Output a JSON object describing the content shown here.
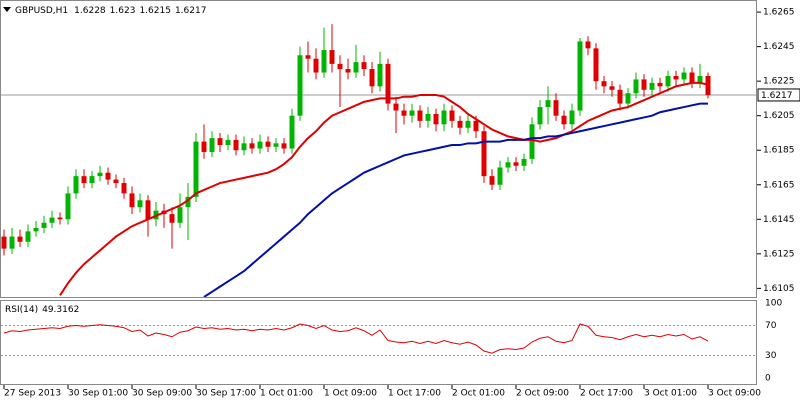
{
  "chart_data": [
    {
      "type": "candlestick",
      "title": "GBPUSD,H1",
      "categories": [
        "27 Sep 2013",
        null,
        null,
        null,
        null,
        null,
        null,
        null,
        "30 Sep 01:00",
        null,
        null,
        null,
        null,
        null,
        null,
        null,
        "30 Sep 09:00",
        null,
        null,
        null,
        null,
        null,
        null,
        null,
        "30 Sep 17:00",
        null,
        null,
        null,
        null,
        null,
        null,
        null,
        "1 Oct 01:00",
        null,
        null,
        null,
        null,
        null,
        null,
        null,
        "1 Oct 09:00",
        null,
        null,
        null,
        null,
        null,
        null,
        null,
        "1 Oct 17:00",
        null,
        null,
        null,
        null,
        null,
        null,
        null,
        "2 Oct 01:00",
        null,
        null,
        null,
        null,
        null,
        null,
        null,
        "2 Oct 09:00",
        null,
        null,
        null,
        null,
        null,
        null,
        null,
        "2 Oct 17:00",
        null,
        null,
        null,
        null,
        null,
        null,
        null,
        "3 Oct 01:00",
        null,
        null,
        null,
        null,
        null,
        null,
        null,
        "3 Oct 09:00"
      ],
      "open": [
        1.6135,
        1.6128,
        1.6135,
        1.6132,
        1.6138,
        1.614,
        1.6143,
        1.6146,
        1.6145,
        1.616,
        1.617,
        1.6166,
        1.617,
        1.6172,
        1.6168,
        1.6166,
        1.616,
        1.6152,
        1.6156,
        1.6145,
        1.615,
        1.6148,
        1.6143,
        1.6152,
        1.6158,
        1.619,
        1.6184,
        1.6192,
        1.6188,
        1.6191,
        1.6185,
        1.6189,
        1.6186,
        1.619,
        1.6187,
        1.6189,
        1.6186,
        1.6205,
        1.624,
        1.6238,
        1.623,
        1.6243,
        1.6235,
        1.6232,
        1.623,
        1.6236,
        1.6232,
        1.6222,
        1.6235,
        1.6212,
        1.6208,
        1.6205,
        1.6208,
        1.6202,
        1.6206,
        1.62,
        1.6208,
        1.6202,
        1.6198,
        1.6202,
        1.6196,
        1.617,
        1.6165,
        1.6175,
        1.6178,
        1.6176,
        1.618,
        1.62,
        1.621,
        1.6214,
        1.6205,
        1.62,
        1.6208,
        1.6248,
        1.6244,
        1.6225,
        1.6222,
        1.622,
        1.6212,
        1.6218,
        1.6226,
        1.622,
        1.6224,
        1.6222,
        1.6228,
        1.6226,
        1.623,
        1.6224,
        1.6228
      ],
      "high": [
        1.6139,
        1.614,
        1.6139,
        1.6142,
        1.6144,
        1.6147,
        1.615,
        1.6149,
        1.6164,
        1.6174,
        1.6174,
        1.6173,
        1.6176,
        1.6175,
        1.6171,
        1.6169,
        1.6164,
        1.616,
        1.6159,
        1.6155,
        1.6154,
        1.6152,
        1.616,
        1.6166,
        1.6195,
        1.62,
        1.6196,
        1.6195,
        1.6194,
        1.6194,
        1.6193,
        1.6192,
        1.6194,
        1.6193,
        1.6192,
        1.6192,
        1.6209,
        1.6245,
        1.6248,
        1.6244,
        1.6256,
        1.6258,
        1.624,
        1.6238,
        1.6246,
        1.624,
        1.6236,
        1.6242,
        1.6238,
        1.6216,
        1.6212,
        1.6212,
        1.6211,
        1.621,
        1.6209,
        1.6212,
        1.6211,
        1.6205,
        1.6206,
        1.6205,
        1.6199,
        1.6174,
        1.6179,
        1.6181,
        1.6181,
        1.6183,
        1.6204,
        1.6214,
        1.6222,
        1.6218,
        1.6208,
        1.6212,
        1.625,
        1.6251,
        1.6247,
        1.6228,
        1.6225,
        1.6223,
        1.6221,
        1.623,
        1.6229,
        1.6227,
        1.6227,
        1.6231,
        1.6231,
        1.6233,
        1.6233,
        1.6235,
        1.623
      ],
      "low": [
        1.6124,
        1.6125,
        1.6129,
        1.6129,
        1.6135,
        1.6137,
        1.614,
        1.6142,
        1.6142,
        1.6157,
        1.6163,
        1.6163,
        1.6167,
        1.6165,
        1.6163,
        1.6157,
        1.6148,
        1.6149,
        1.6135,
        1.6141,
        1.614,
        1.6128,
        1.614,
        1.6133,
        1.6155,
        1.618,
        1.6181,
        1.6184,
        1.6185,
        1.6182,
        1.6182,
        1.6183,
        1.6183,
        1.6184,
        1.6184,
        1.6183,
        1.6183,
        1.6202,
        1.623,
        1.6226,
        1.6227,
        1.623,
        1.621,
        1.6226,
        1.6227,
        1.6228,
        1.6218,
        1.6219,
        1.6208,
        1.6195,
        1.62,
        1.6201,
        1.6198,
        1.6198,
        1.6196,
        1.6196,
        1.6198,
        1.6194,
        1.6195,
        1.6192,
        1.6166,
        1.6162,
        1.6162,
        1.6172,
        1.6173,
        1.6173,
        1.6177,
        1.6197,
        1.62,
        1.6202,
        1.6197,
        1.6197,
        1.6205,
        1.624,
        1.622,
        1.6218,
        1.6216,
        1.6208,
        1.6209,
        1.6215,
        1.6216,
        1.6217,
        1.6218,
        1.6219,
        1.6222,
        1.6223,
        1.6221,
        1.6221,
        1.6215
      ],
      "close": [
        1.6128,
        1.6135,
        1.6132,
        1.6138,
        1.614,
        1.6143,
        1.6146,
        1.6145,
        1.616,
        1.617,
        1.6166,
        1.617,
        1.6172,
        1.6168,
        1.6166,
        1.616,
        1.6152,
        1.6156,
        1.6145,
        1.615,
        1.6148,
        1.6143,
        1.6152,
        1.6158,
        1.619,
        1.6184,
        1.6192,
        1.6188,
        1.6191,
        1.6185,
        1.6189,
        1.6186,
        1.619,
        1.6187,
        1.6189,
        1.6186,
        1.6205,
        1.624,
        1.6238,
        1.623,
        1.6243,
        1.6235,
        1.6232,
        1.623,
        1.6236,
        1.6232,
        1.6222,
        1.6235,
        1.6212,
        1.6208,
        1.6205,
        1.6208,
        1.6202,
        1.6206,
        1.62,
        1.6208,
        1.6202,
        1.6198,
        1.6202,
        1.6196,
        1.617,
        1.6165,
        1.6175,
        1.6178,
        1.6176,
        1.618,
        1.62,
        1.621,
        1.6214,
        1.6205,
        1.62,
        1.6208,
        1.6248,
        1.6244,
        1.6225,
        1.6222,
        1.622,
        1.6212,
        1.6218,
        1.6226,
        1.622,
        1.6224,
        1.6222,
        1.6228,
        1.6226,
        1.623,
        1.6224,
        1.6228,
        1.6217
      ],
      "up_color": "#00b400",
      "down_color": "#e00000",
      "series": [
        {
          "color": "#e00000",
          "values": [
            null,
            null,
            null,
            null,
            null,
            null,
            null,
            1.6101,
            1.6108,
            1.6114,
            1.6119,
            1.6123,
            1.6127,
            1.6131,
            1.6135,
            1.6138,
            1.6141,
            1.6143,
            1.6145,
            1.6147,
            1.6149,
            1.6151,
            1.6153,
            1.6156,
            1.616,
            1.6162,
            1.6164,
            1.6166,
            1.6167,
            1.6168,
            1.6169,
            1.617,
            1.6171,
            1.6172,
            1.6174,
            1.6177,
            1.6181,
            1.6187,
            1.6192,
            1.6196,
            1.6201,
            1.6205,
            1.6207,
            1.6209,
            1.6211,
            1.6213,
            1.6214,
            1.6215,
            1.6215,
            1.6215,
            1.6216,
            1.6216,
            1.6217,
            1.6217,
            1.6217,
            1.6216,
            1.6213,
            1.621,
            1.6206,
            1.6203,
            1.62,
            1.6197,
            1.6195,
            1.6193,
            1.6192,
            1.6191,
            1.6191,
            1.619,
            1.6191,
            1.6192,
            1.6194,
            1.6196,
            1.6199,
            1.6202,
            1.6204,
            1.6206,
            1.6208,
            1.6209,
            1.621,
            1.6212,
            1.6214,
            1.6216,
            1.6218,
            1.622,
            1.6222,
            1.6223,
            1.6224,
            1.6224,
            1.6223
          ]
        },
        {
          "color": "#0010a8",
          "values": [
            null,
            null,
            null,
            null,
            null,
            null,
            null,
            null,
            null,
            null,
            null,
            null,
            null,
            null,
            null,
            null,
            null,
            null,
            null,
            null,
            null,
            null,
            null,
            null,
            null,
            1.61,
            1.6103,
            1.6106,
            1.6109,
            1.6112,
            1.6115,
            1.6119,
            1.6123,
            1.6127,
            1.6131,
            1.6135,
            1.6139,
            1.6143,
            1.6148,
            1.6152,
            1.6156,
            1.616,
            1.6163,
            1.6166,
            1.6169,
            1.6172,
            1.6174,
            1.6176,
            1.6178,
            1.618,
            1.6182,
            1.6183,
            1.6184,
            1.6185,
            1.6186,
            1.6187,
            1.6188,
            1.6188,
            1.6189,
            1.6189,
            1.619,
            1.619,
            1.619,
            1.6191,
            1.6191,
            1.6191,
            1.6192,
            1.6192,
            1.6193,
            1.6193,
            1.6194,
            1.6195,
            1.6196,
            1.6197,
            1.6198,
            1.6199,
            1.62,
            1.6201,
            1.6202,
            1.6203,
            1.6204,
            1.6205,
            1.6207,
            1.6208,
            1.6209,
            1.621,
            1.6211,
            1.6212,
            1.6212
          ]
        }
      ],
      "ylim": [
        1.61,
        1.6272
      ],
      "yticks": [
        1.6105,
        1.6125,
        1.6145,
        1.6165,
        1.6185,
        1.6205,
        1.6225,
        1.6245,
        1.6265
      ]
    },
    {
      "type": "line",
      "series": [
        {
          "name": "RSI(14)",
          "color": "#e00000",
          "values": [
            60,
            63,
            62,
            64,
            65,
            66,
            67,
            66,
            69,
            70,
            69,
            70,
            71,
            70,
            69,
            67,
            62,
            64,
            56,
            60,
            58,
            55,
            61,
            63,
            68,
            66,
            67,
            65,
            66,
            64,
            65,
            63,
            65,
            64,
            66,
            64,
            67,
            72,
            70,
            66,
            70,
            64,
            62,
            63,
            67,
            63,
            57,
            64,
            50,
            48,
            47,
            49,
            46,
            49,
            46,
            50,
            47,
            45,
            48,
            44,
            36,
            33,
            38,
            39,
            38,
            40,
            48,
            53,
            55,
            49,
            47,
            50,
            72,
            69,
            57,
            55,
            54,
            51,
            55,
            58,
            55,
            57,
            55,
            58,
            56,
            58,
            52,
            55,
            49.3162
          ]
        }
      ],
      "ylim": [
        0,
        100
      ],
      "yticks": [
        0,
        30,
        70,
        100
      ]
    }
  ]
}
